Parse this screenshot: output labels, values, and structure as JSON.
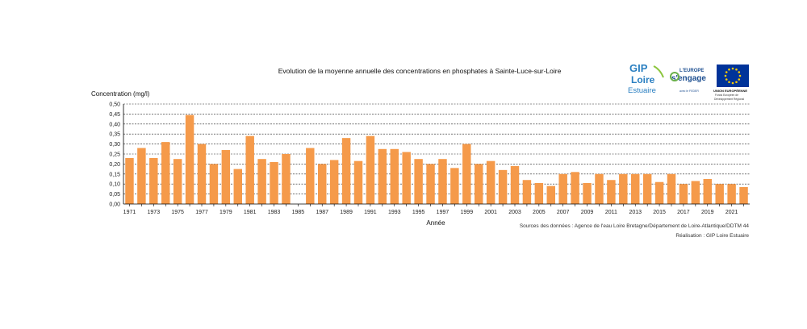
{
  "chart_data": {
    "type": "bar",
    "title": "Evolution de la moyenne annuelle des concentrations en phosphates à Sainte-Luce-sur-Loire",
    "ylabel": "Concentration  (mg/l)",
    "xlabel": "Année",
    "ylim": [
      0,
      0.5
    ],
    "y_ticks": [
      "0,00",
      "0,05",
      "0,10",
      "0,15",
      "0,20",
      "0,25",
      "0,30",
      "0,35",
      "0,40",
      "0,45",
      "0,50"
    ],
    "grid": true,
    "bar_color": "#F59A4A",
    "x_tick_labels": [
      "1971",
      "1973",
      "1975",
      "1977",
      "1979",
      "1981",
      "1983",
      "1985",
      "1987",
      "1989",
      "1991",
      "1993",
      "1995",
      "1997",
      "1999",
      "2001",
      "2003",
      "2005",
      "2007",
      "2009",
      "2011",
      "2013",
      "2015",
      "2017",
      "2019",
      "2021"
    ],
    "categories": [
      "1971",
      "1972",
      "1973",
      "1974",
      "1975",
      "1976",
      "1977",
      "1978",
      "1979",
      "1980",
      "1981",
      "1982",
      "1983",
      "1984",
      "1985",
      "1986",
      "1987",
      "1988",
      "1989",
      "1990",
      "1991",
      "1992",
      "1993",
      "1994",
      "1995",
      "1996",
      "1997",
      "1998",
      "1999",
      "2000",
      "2001",
      "2002",
      "2003",
      "2004",
      "2005",
      "2006",
      "2007",
      "2008",
      "2009",
      "2010",
      "2011",
      "2012",
      "2013",
      "2014",
      "2015",
      "2016",
      "2017",
      "2018",
      "2019",
      "2020",
      "2021",
      "2022"
    ],
    "values": [
      0.23,
      0.28,
      0.23,
      0.31,
      0.225,
      0.445,
      0.3,
      0.2,
      0.27,
      0.175,
      0.34,
      0.225,
      0.21,
      0.25,
      null,
      0.28,
      0.2,
      0.22,
      0.33,
      0.215,
      0.34,
      0.275,
      0.275,
      0.26,
      0.225,
      0.2,
      0.225,
      0.18,
      0.3,
      0.2,
      0.215,
      0.17,
      0.19,
      0.12,
      0.105,
      0.09,
      0.15,
      0.16,
      0.105,
      0.15,
      0.12,
      0.15,
      0.15,
      0.15,
      0.11,
      0.15,
      0.1,
      0.115,
      0.125,
      0.1,
      0.1,
      0.085
    ]
  },
  "source": "Sources des données : Agence de l'eau Loire Bretagne/Département de Loire-Atlantique/DDTM 44",
  "credit": "Réalisation : GIP Loire Estuaire",
  "logos": {
    "gip_line1": "GIP",
    "gip_line2": "Loire",
    "gip_line3": "Estuaire",
    "europe_line1": "L'EUROPE",
    "europe_line2": "s'engage",
    "europe_line3": "avec le FEDER",
    "ue_line1": "UNION EUROPÉENNE",
    "ue_line2": "Fonds Européen de",
    "ue_line3": "Développement Régional"
  }
}
